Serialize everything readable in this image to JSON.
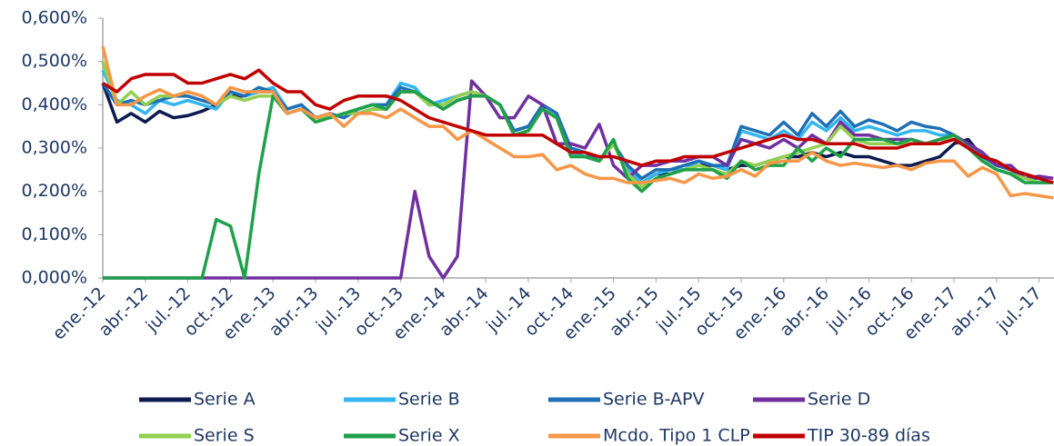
{
  "chart_data": {
    "type": "line",
    "categories": [
      "ene.-12",
      null,
      null,
      "abr.-12",
      null,
      null,
      "jul.-12",
      null,
      null,
      "oct.-12",
      null,
      null,
      "ene.-13",
      null,
      null,
      "abr.-13",
      null,
      null,
      "jul.-13",
      null,
      null,
      "oct.-13",
      null,
      null,
      "ene.-14",
      null,
      null,
      "abr.-14",
      null,
      null,
      "jul.-14",
      null,
      null,
      "oct.-14",
      null,
      null,
      "ene.-15",
      null,
      null,
      "abr.-15",
      null,
      null,
      "jul.-15",
      null,
      null,
      "oct.-15",
      null,
      null,
      "ene.-16",
      null,
      null,
      "abr.-16",
      null,
      null,
      "jul.-16",
      null,
      null,
      "oct.-16",
      null,
      null,
      "ene.-17",
      null,
      null,
      "abr.-17",
      null,
      null,
      "jul.-17",
      null
    ],
    "ylim": [
      0,
      0.6
    ],
    "yticks": [
      {
        "value": 0,
        "label": "0,000%"
      },
      {
        "value": 0.1,
        "label": "0,100%"
      },
      {
        "value": 0.2,
        "label": "0,200%"
      },
      {
        "value": 0.3,
        "label": "0,300%"
      },
      {
        "value": 0.4,
        "label": "0,400%"
      },
      {
        "value": 0.5,
        "label": "0,500%"
      },
      {
        "value": 0.6,
        "label": "0,600%"
      }
    ],
    "series": [
      {
        "name": "Serie A",
        "color": "#0d1a4f",
        "values": [
          0.45,
          0.36,
          0.38,
          0.36,
          0.385,
          0.37,
          0.375,
          0.385,
          0.4,
          0.42,
          0.42,
          0.43,
          0.43,
          0.38,
          0.39,
          0.37,
          0.37,
          0.38,
          0.38,
          0.39,
          0.39,
          0.43,
          0.43,
          0.41,
          0.39,
          0.41,
          0.42,
          0.42,
          0.4,
          0.34,
          0.35,
          0.39,
          0.37,
          0.29,
          0.28,
          0.27,
          0.31,
          0.25,
          0.22,
          0.24,
          0.24,
          0.25,
          0.26,
          0.26,
          0.25,
          0.26,
          0.26,
          0.27,
          0.28,
          0.28,
          0.29,
          0.28,
          0.29,
          0.28,
          0.28,
          0.27,
          0.26,
          0.26,
          0.27,
          0.28,
          0.31,
          0.32,
          0.28,
          0.26,
          0.25,
          0.24,
          0.23,
          0.22
        ]
      },
      {
        "name": "Serie B",
        "color": "#33b6ef",
        "values": [
          0.48,
          0.41,
          0.4,
          0.38,
          0.41,
          0.4,
          0.41,
          0.4,
          0.39,
          0.43,
          0.42,
          0.43,
          0.44,
          0.39,
          0.4,
          0.37,
          0.38,
          0.37,
          0.39,
          0.4,
          0.4,
          0.45,
          0.44,
          0.4,
          0.41,
          0.42,
          0.43,
          0.42,
          0.4,
          0.34,
          0.35,
          0.4,
          0.38,
          0.29,
          0.28,
          0.27,
          0.31,
          0.25,
          0.22,
          0.24,
          0.25,
          0.25,
          0.27,
          0.26,
          0.25,
          0.34,
          0.33,
          0.32,
          0.34,
          0.32,
          0.36,
          0.34,
          0.37,
          0.34,
          0.35,
          0.34,
          0.33,
          0.34,
          0.34,
          0.33,
          0.33,
          0.31,
          0.28,
          0.26,
          0.25,
          0.23,
          0.23,
          0.22
        ]
      },
      {
        "name": "Serie B-APV",
        "color": "#1f6fb5",
        "values": [
          0.45,
          0.4,
          0.41,
          0.4,
          0.41,
          0.42,
          0.42,
          0.41,
          0.4,
          0.43,
          0.42,
          0.44,
          0.43,
          0.39,
          0.4,
          0.37,
          0.38,
          0.37,
          0.39,
          0.4,
          0.4,
          0.44,
          0.43,
          0.4,
          0.4,
          0.42,
          0.43,
          0.42,
          0.4,
          0.34,
          0.35,
          0.4,
          0.38,
          0.3,
          0.29,
          0.27,
          0.31,
          0.26,
          0.23,
          0.25,
          0.25,
          0.26,
          0.27,
          0.26,
          0.26,
          0.35,
          0.34,
          0.33,
          0.36,
          0.33,
          0.38,
          0.35,
          0.385,
          0.35,
          0.365,
          0.355,
          0.34,
          0.36,
          0.35,
          0.345,
          0.33,
          0.3,
          0.28,
          0.26,
          0.25,
          0.23,
          0.23,
          0.22
        ]
      },
      {
        "name": "Serie D",
        "color": "#7030a0",
        "values": [
          0,
          0,
          0,
          0,
          0,
          0,
          0,
          0,
          0,
          0,
          0,
          0,
          0,
          0,
          0,
          0,
          0,
          0,
          0,
          0,
          0,
          0,
          0.2,
          0.05,
          0,
          0.05,
          0.455,
          0.42,
          0.37,
          0.37,
          0.42,
          0.4,
          0.31,
          0.31,
          0.3,
          0.355,
          0.26,
          0.23,
          0.26,
          0.26,
          0.27,
          0.27,
          0.28,
          0.28,
          0.26,
          0.32,
          0.31,
          0.3,
          0.32,
          0.3,
          0.33,
          0.31,
          0.36,
          0.33,
          0.33,
          0.32,
          0.32,
          0.32,
          0.31,
          0.32,
          0.33,
          0.31,
          0.29,
          0.26,
          0.26,
          0.23,
          0.235,
          0.23
        ]
      },
      {
        "name": "Serie S",
        "color": "#92d050",
        "values": [
          0.5,
          0.4,
          0.43,
          0.4,
          0.42,
          0.42,
          0.43,
          0.42,
          0.4,
          0.42,
          0.41,
          0.42,
          0.42,
          0.38,
          0.39,
          0.37,
          0.37,
          0.38,
          0.38,
          0.39,
          0.39,
          0.43,
          0.43,
          0.4,
          0.4,
          0.42,
          0.43,
          0.42,
          0.4,
          0.33,
          0.34,
          0.39,
          0.37,
          0.28,
          0.28,
          0.27,
          0.31,
          0.24,
          0.21,
          0.23,
          0.24,
          0.25,
          0.26,
          0.25,
          0.24,
          0.27,
          0.26,
          0.27,
          0.28,
          0.29,
          0.3,
          0.31,
          0.35,
          0.32,
          0.31,
          0.31,
          0.31,
          0.31,
          0.31,
          0.31,
          0.33,
          0.3,
          0.27,
          0.25,
          0.24,
          0.23,
          0.22,
          0.22
        ]
      },
      {
        "name": "Serie X",
        "color": "#1fa04a",
        "values": [
          0,
          0,
          0,
          0,
          0,
          0,
          0,
          0,
          0.135,
          0.12,
          0,
          0.24,
          0.42,
          0.38,
          0.39,
          0.36,
          0.37,
          0.38,
          0.39,
          0.4,
          0.39,
          0.43,
          0.43,
          0.41,
          0.39,
          0.41,
          0.42,
          0.42,
          0.4,
          0.33,
          0.34,
          0.39,
          0.37,
          0.28,
          0.28,
          0.27,
          0.32,
          0.23,
          0.2,
          0.23,
          0.24,
          0.25,
          0.25,
          0.25,
          0.23,
          0.27,
          0.25,
          0.26,
          0.26,
          0.3,
          0.27,
          0.3,
          0.28,
          0.32,
          0.32,
          0.32,
          0.31,
          0.32,
          0.31,
          0.32,
          0.33,
          0.3,
          0.27,
          0.25,
          0.24,
          0.22,
          0.22,
          0.22
        ]
      },
      {
        "name": "Mcdo. Tipo 1 CLP",
        "color": "#f79646",
        "values": [
          0.535,
          0.4,
          0.4,
          0.42,
          0.435,
          0.42,
          0.43,
          0.42,
          0.4,
          0.44,
          0.43,
          0.43,
          0.43,
          0.38,
          0.39,
          0.37,
          0.38,
          0.35,
          0.38,
          0.38,
          0.37,
          0.39,
          0.37,
          0.35,
          0.35,
          0.32,
          0.34,
          0.32,
          0.3,
          0.28,
          0.28,
          0.285,
          0.25,
          0.26,
          0.24,
          0.23,
          0.23,
          0.22,
          0.22,
          0.225,
          0.23,
          0.22,
          0.24,
          0.23,
          0.235,
          0.25,
          0.235,
          0.265,
          0.27,
          0.27,
          0.29,
          0.27,
          0.26,
          0.265,
          0.26,
          0.255,
          0.26,
          0.25,
          0.265,
          0.27,
          0.27,
          0.235,
          0.255,
          0.24,
          0.19,
          0.195,
          0.19,
          0.185
        ]
      },
      {
        "name": "TIP 30-89 días",
        "color": "#c00000",
        "values": [
          0.45,
          0.43,
          0.46,
          0.47,
          0.47,
          0.47,
          0.45,
          0.45,
          0.46,
          0.47,
          0.46,
          0.48,
          0.45,
          0.43,
          0.43,
          0.4,
          0.39,
          0.41,
          0.42,
          0.42,
          0.42,
          0.41,
          0.39,
          0.37,
          0.36,
          0.35,
          0.34,
          0.33,
          0.33,
          0.33,
          0.33,
          0.33,
          0.31,
          0.29,
          0.29,
          0.28,
          0.28,
          0.27,
          0.26,
          0.27,
          0.27,
          0.28,
          0.28,
          0.28,
          0.29,
          0.3,
          0.31,
          0.32,
          0.33,
          0.32,
          0.32,
          0.31,
          0.31,
          0.31,
          0.3,
          0.3,
          0.3,
          0.31,
          0.31,
          0.31,
          0.32,
          0.3,
          0.28,
          0.27,
          0.25,
          0.24,
          0.23,
          0.22
        ]
      }
    ]
  }
}
